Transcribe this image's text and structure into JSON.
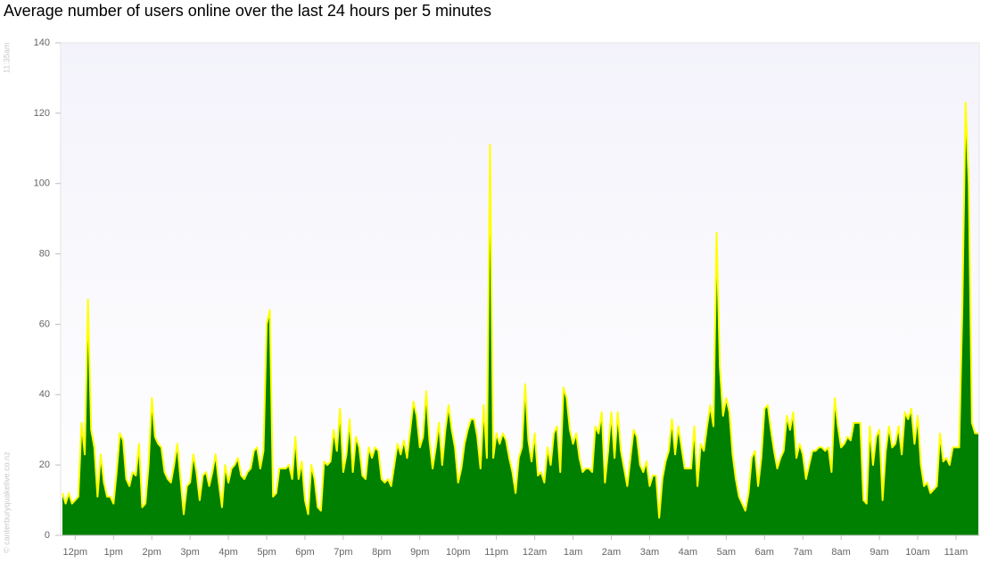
{
  "chart_data": {
    "type": "area",
    "title": "Average number of users online over the last 24 hours per 5 minutes",
    "annotations": [
      "11:35am",
      "© canterburyquakelive.co.nz"
    ],
    "categories": [
      null,
      null,
      null,
      null,
      "12pm",
      null,
      null,
      null,
      null,
      null,
      null,
      null,
      null,
      null,
      null,
      null,
      "1pm",
      null,
      null,
      null,
      null,
      null,
      null,
      null,
      null,
      null,
      null,
      null,
      "2pm",
      null,
      null,
      null,
      null,
      null,
      null,
      null,
      null,
      null,
      null,
      null,
      "3pm",
      null,
      null,
      null,
      null,
      null,
      null,
      null,
      null,
      null,
      null,
      null,
      "4pm",
      null,
      null,
      null,
      null,
      null,
      null,
      null,
      null,
      null,
      null,
      null,
      "5pm",
      null,
      null,
      null,
      null,
      null,
      null,
      null,
      null,
      null,
      null,
      null,
      "6pm",
      null,
      null,
      null,
      null,
      null,
      null,
      null,
      null,
      null,
      null,
      null,
      "7pm",
      null,
      null,
      null,
      null,
      null,
      null,
      null,
      null,
      null,
      null,
      null,
      "8pm",
      null,
      null,
      null,
      null,
      null,
      null,
      null,
      null,
      null,
      null,
      null,
      "9pm",
      null,
      null,
      null,
      null,
      null,
      null,
      null,
      null,
      null,
      null,
      null,
      "10pm",
      null,
      null,
      null,
      null,
      null,
      null,
      null,
      null,
      null,
      null,
      null,
      "11pm",
      null,
      null,
      null,
      null,
      null,
      null,
      null,
      null,
      null,
      null,
      null,
      "12am",
      null,
      null,
      null,
      null,
      null,
      null,
      null,
      null,
      null,
      null,
      null,
      "1am",
      null,
      null,
      null,
      null,
      null,
      null,
      null,
      null,
      null,
      null,
      null,
      "2am",
      null,
      null,
      null,
      null,
      null,
      null,
      null,
      null,
      null,
      null,
      null,
      "3am",
      null,
      null,
      null,
      null,
      null,
      null,
      null,
      null,
      null,
      null,
      null,
      "4am",
      null,
      null,
      null,
      null,
      null,
      null,
      null,
      null,
      null,
      null,
      null,
      "5am",
      null,
      null,
      null,
      null,
      null,
      null,
      null,
      null,
      null,
      null,
      null,
      "6am",
      null,
      null,
      null,
      null,
      null,
      null,
      null,
      null,
      null,
      null,
      null,
      "7am",
      null,
      null,
      null,
      null,
      null,
      null,
      null,
      null,
      null,
      null,
      null,
      "8am",
      null,
      null,
      null,
      null,
      null,
      null,
      null,
      null,
      null,
      null,
      null,
      "9am",
      null,
      null,
      null,
      null,
      null,
      null,
      null,
      null,
      null,
      null,
      null,
      "10am",
      null,
      null,
      null,
      null,
      null,
      null,
      null,
      null,
      null,
      null,
      null,
      "11am",
      null,
      null,
      null,
      null,
      null,
      null,
      null
    ],
    "series": [
      {
        "color": "#008000",
        "line_color": "#ffff00",
        "values": [
          12,
          9,
          12,
          9,
          10,
          11,
          32,
          23,
          67,
          30,
          25,
          11,
          23,
          15,
          11,
          11,
          9,
          18,
          29,
          27,
          16,
          14,
          18,
          17,
          26,
          8,
          9,
          20,
          39,
          28,
          26,
          25,
          18,
          16,
          15,
          20,
          26,
          16,
          6,
          14,
          15,
          23,
          18,
          10,
          17,
          18,
          14,
          18,
          23,
          15,
          8,
          20,
          15,
          19,
          20,
          22,
          17,
          16,
          18,
          19,
          24,
          25,
          19,
          24,
          60,
          64,
          11,
          12,
          19,
          19,
          19,
          20,
          16,
          28,
          16,
          21,
          10,
          6,
          20,
          16,
          8,
          7,
          21,
          20,
          21,
          30,
          24,
          36,
          18,
          23,
          33,
          18,
          28,
          25,
          17,
          16,
          25,
          22,
          25,
          24,
          16,
          15,
          16,
          14,
          20,
          26,
          23,
          27,
          22,
          30,
          38,
          34,
          25,
          28,
          41,
          27,
          19,
          25,
          32,
          20,
          30,
          37,
          30,
          25,
          15,
          19,
          26,
          30,
          33,
          33,
          28,
          19,
          37,
          22,
          111,
          22,
          29,
          26,
          29,
          27,
          22,
          18,
          12,
          22,
          25,
          43,
          27,
          21,
          29,
          17,
          18,
          15,
          25,
          20,
          29,
          31,
          18,
          42,
          39,
          30,
          26,
          29,
          22,
          18,
          19,
          19,
          18,
          31,
          29,
          35,
          15,
          24,
          35,
          22,
          35,
          24,
          19,
          14,
          22,
          30,
          28,
          20,
          18,
          21,
          14,
          17,
          17,
          5,
          16,
          21,
          24,
          33,
          23,
          31,
          25,
          19,
          19,
          19,
          31,
          14,
          26,
          24,
          31,
          37,
          31,
          86,
          48,
          34,
          39,
          35,
          23,
          16,
          11,
          9,
          7,
          12,
          22,
          24,
          14,
          22,
          36,
          37,
          30,
          24,
          19,
          22,
          24,
          34,
          30,
          35,
          22,
          26,
          23,
          16,
          20,
          24,
          24,
          25,
          25,
          24,
          25,
          18,
          39,
          31,
          25,
          26,
          28,
          27,
          32,
          32,
          32,
          10,
          9,
          31,
          20,
          28,
          30,
          10,
          24,
          31,
          25,
          26,
          31,
          23,
          35,
          33,
          36,
          26,
          34,
          20,
          14,
          15,
          12,
          13,
          14,
          29,
          21,
          22,
          20,
          25,
          25,
          25,
          65,
          123,
          100,
          32,
          29,
          29
        ]
      }
    ],
    "ylim": [
      0,
      140
    ],
    "yticks": [
      0,
      20,
      40,
      60,
      80,
      100,
      120,
      140
    ],
    "grid": false
  }
}
